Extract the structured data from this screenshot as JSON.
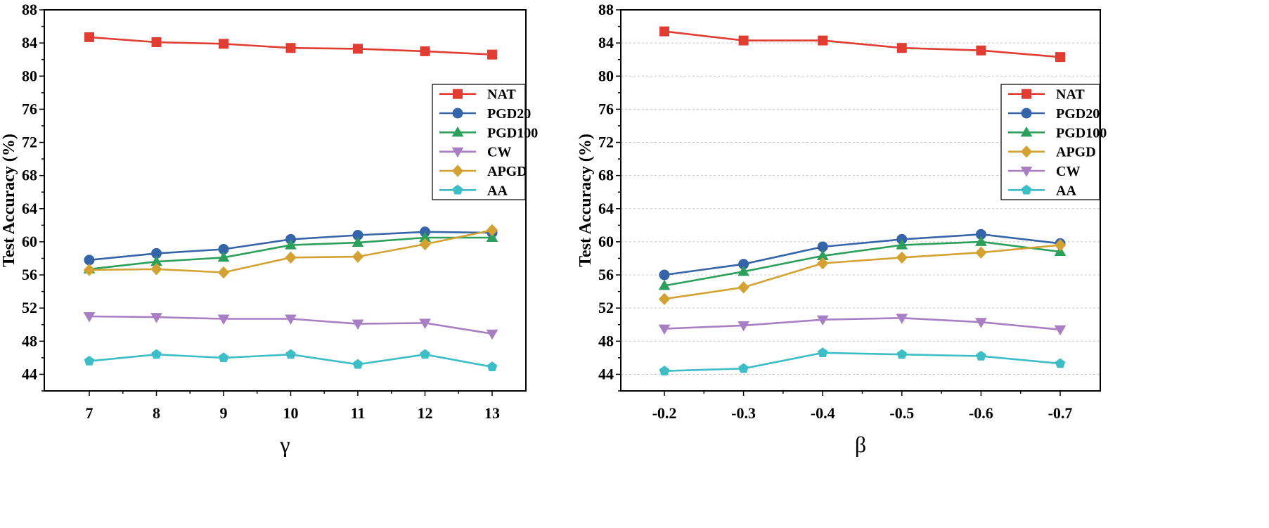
{
  "chart_data": [
    {
      "type": "line",
      "xlabel": "γ",
      "ylabel": "Test Accuracy (%)",
      "categories": [
        "7",
        "8",
        "9",
        "10",
        "11",
        "12",
        "13"
      ],
      "ylim": [
        42,
        88
      ],
      "yticks": [
        "44",
        "48",
        "52",
        "56",
        "60",
        "64",
        "68",
        "72",
        "76",
        "80",
        "84",
        "88"
      ],
      "grid": false,
      "legend_position": "upper-right",
      "series": [
        {
          "name": "NAT",
          "color": "#e03c31",
          "marker": "square",
          "values": [
            84.7,
            84.1,
            83.9,
            83.4,
            83.3,
            83.0,
            82.6
          ]
        },
        {
          "name": "PGD20",
          "color": "#3565a8",
          "marker": "circle",
          "values": [
            57.8,
            58.6,
            59.1,
            60.3,
            60.8,
            61.2,
            61.1
          ]
        },
        {
          "name": "PGD100",
          "color": "#2ca05a",
          "marker": "triangle-up",
          "values": [
            56.7,
            57.6,
            58.1,
            59.6,
            59.9,
            60.5,
            60.5
          ]
        },
        {
          "name": "CW",
          "color": "#a97fc4",
          "marker": "triangle-down",
          "values": [
            51.0,
            50.9,
            50.7,
            50.7,
            50.1,
            50.2,
            48.9
          ]
        },
        {
          "name": "APGD",
          "color": "#d4a233",
          "marker": "diamond",
          "values": [
            56.6,
            56.7,
            56.3,
            58.1,
            58.2,
            59.7,
            61.4
          ]
        },
        {
          "name": "AA",
          "color": "#3dbdc6",
          "marker": "pentagon",
          "values": [
            45.6,
            46.4,
            46.0,
            46.4,
            45.2,
            46.4,
            44.9
          ]
        }
      ]
    },
    {
      "type": "line",
      "xlabel": "β",
      "ylabel": "Test Accuracy (%)",
      "categories": [
        "-0.2",
        "-0.3",
        "-0.4",
        "-0.5",
        "-0.6",
        "-0.7"
      ],
      "ylim": [
        42,
        88
      ],
      "yticks": [
        "44",
        "48",
        "52",
        "56",
        "60",
        "64",
        "68",
        "72",
        "76",
        "80",
        "84",
        "88"
      ],
      "grid": true,
      "legend_position": "upper-right",
      "series": [
        {
          "name": "NAT",
          "color": "#e03c31",
          "marker": "square",
          "values": [
            85.4,
            84.3,
            84.3,
            83.4,
            83.1,
            82.3
          ]
        },
        {
          "name": "PGD20",
          "color": "#3565a8",
          "marker": "circle",
          "values": [
            56.0,
            57.3,
            59.4,
            60.3,
            60.9,
            59.8
          ]
        },
        {
          "name": "PGD100",
          "color": "#2ca05a",
          "marker": "triangle-up",
          "values": [
            54.7,
            56.4,
            58.3,
            59.6,
            60.0,
            58.8
          ]
        },
        {
          "name": "APGD",
          "color": "#d4a233",
          "marker": "diamond",
          "values": [
            53.1,
            54.5,
            57.4,
            58.1,
            58.7,
            59.6
          ]
        },
        {
          "name": "CW",
          "color": "#a97fc4",
          "marker": "triangle-down",
          "values": [
            49.5,
            49.9,
            50.6,
            50.8,
            50.3,
            49.4
          ]
        },
        {
          "name": "AA",
          "color": "#3dbdc6",
          "marker": "pentagon",
          "values": [
            44.4,
            44.7,
            46.6,
            46.4,
            46.2,
            45.3
          ]
        }
      ]
    }
  ]
}
